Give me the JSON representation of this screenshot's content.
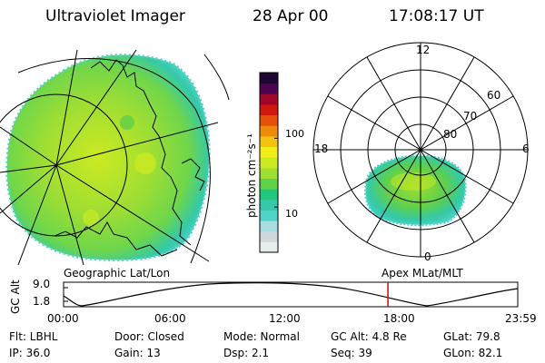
{
  "header": {
    "instrument": "Ultraviolet Imager",
    "date": "28 Apr 00",
    "time": "17:08:17 UT"
  },
  "colorbar": {
    "label": "photon cm⁻²s⁻¹",
    "ticks": [
      {
        "label": "100",
        "value": 100
      },
      {
        "label": "10",
        "value": 10
      }
    ],
    "colors": [
      "#e8ecec",
      "#cfd8dd",
      "#a8dde0",
      "#4fd3c8",
      "#34c9a8",
      "#22c77a",
      "#5fd04a",
      "#9fde33",
      "#ccea22",
      "#f2ee1a",
      "#f4c20f",
      "#f08a0a",
      "#e5500a",
      "#d0180c",
      "#a0062a",
      "#4a0450",
      "#1a0830"
    ]
  },
  "geo_panel": {
    "label": "Geographic Lat/Lon"
  },
  "polar_panel": {
    "label": "Apex MLat/MLT",
    "mlt_labels": {
      "top": "12",
      "left": "18",
      "right": "6",
      "bottom": "0"
    },
    "mlat_labels": [
      "60",
      "70",
      "80"
    ]
  },
  "altitude_plot": {
    "ylabel": "GC Alt",
    "y_ticks": [
      "9.0",
      "1.8"
    ],
    "x_ticks": [
      "00:00",
      "06:00",
      "12:00",
      "18:00",
      "23:59"
    ],
    "current_time_hours": 17.14,
    "marker_color": "#e00000"
  },
  "footer": {
    "flt": "Flt: LBHL",
    "door": "Door: Closed",
    "mode": "Mode: Normal",
    "gc_alt": "GC Alt: 4.8 Re",
    "glat": "GLat:  79.8",
    "ip": "IP: 36.0",
    "gain": "Gain: 13",
    "dsp": "Dsp:     2.1",
    "seq": "Seq: 39",
    "glon": "GLon:  82.1"
  }
}
